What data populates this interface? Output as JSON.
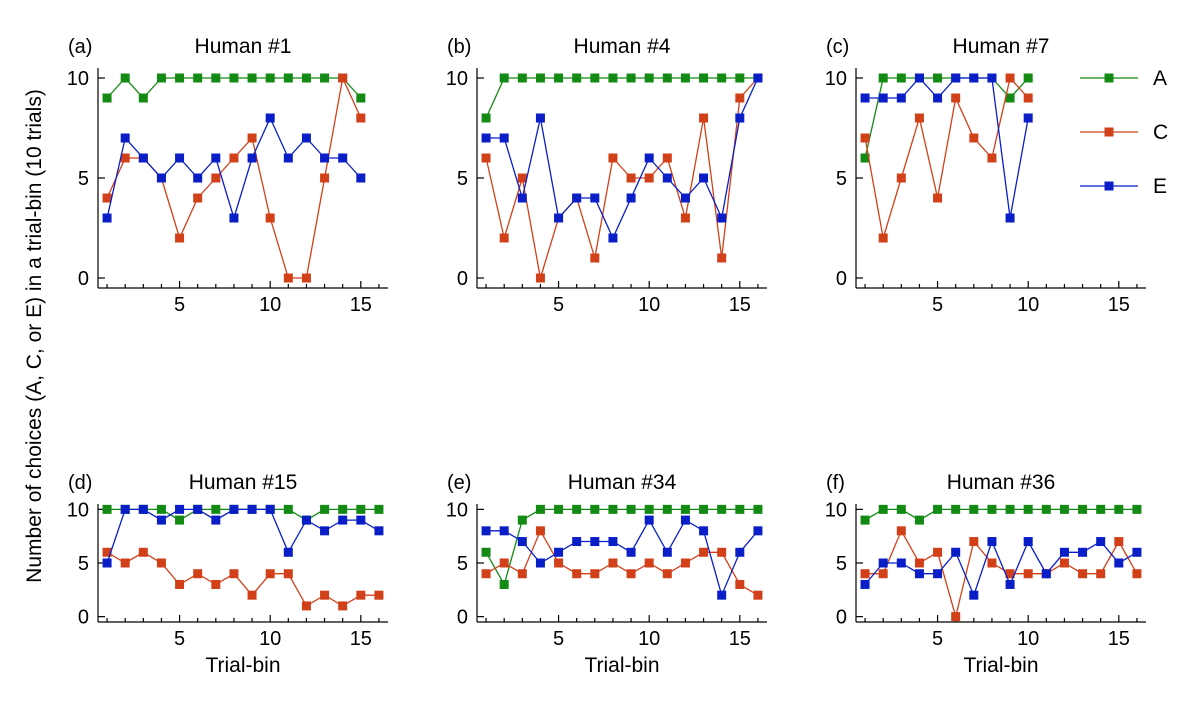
{
  "figure": {
    "ylabel": "Number of choices (A, C, or E) in a trial-bin (10 trials)",
    "xlabel": "Trial-bin"
  },
  "legend": [
    {
      "name": "A",
      "color": "#138a13"
    },
    {
      "name": "C",
      "color": "#d2401a"
    },
    {
      "name": "E",
      "color": "#0a1ec8"
    }
  ],
  "chart_data": [
    {
      "type": "line",
      "letter": "(a)",
      "title": "Human #1",
      "xlim": [
        0.5,
        16.5
      ],
      "ylim": [
        -0.5,
        10.5
      ],
      "xticks": [
        5,
        10,
        15
      ],
      "yticks": [
        0,
        5,
        10
      ],
      "series": [
        {
          "name": "A",
          "color": "#138a13",
          "x": [
            1,
            2,
            3,
            4,
            5,
            6,
            7,
            8,
            9,
            10,
            11,
            12,
            13,
            14,
            15
          ],
          "values": [
            9,
            10,
            9,
            10,
            10,
            10,
            10,
            10,
            10,
            10,
            10,
            10,
            10,
            10,
            9
          ]
        },
        {
          "name": "C",
          "color": "#d2401a",
          "x": [
            1,
            2,
            3,
            4,
            5,
            6,
            7,
            8,
            9,
            10,
            11,
            12,
            13,
            14,
            15
          ],
          "values": [
            4,
            6,
            6,
            5,
            2,
            4,
            5,
            6,
            7,
            3,
            0,
            0,
            5,
            10,
            8
          ]
        },
        {
          "name": "E",
          "color": "#0a1ec8",
          "x": [
            1,
            2,
            3,
            4,
            5,
            6,
            7,
            8,
            9,
            10,
            11,
            12,
            13,
            14,
            15
          ],
          "values": [
            3,
            7,
            6,
            5,
            6,
            5,
            6,
            3,
            6,
            8,
            6,
            7,
            6,
            6,
            5
          ]
        }
      ]
    },
    {
      "type": "line",
      "letter": "(b)",
      "title": "Human #4",
      "xlim": [
        0.5,
        16.5
      ],
      "ylim": [
        -0.5,
        10.5
      ],
      "xticks": [
        5,
        10,
        15
      ],
      "yticks": [
        0,
        5,
        10
      ],
      "series": [
        {
          "name": "A",
          "color": "#138a13",
          "x": [
            1,
            2,
            3,
            4,
            5,
            6,
            7,
            8,
            9,
            10,
            11,
            12,
            13,
            14,
            15,
            16
          ],
          "values": [
            8,
            10,
            10,
            10,
            10,
            10,
            10,
            10,
            10,
            10,
            10,
            10,
            10,
            10,
            10,
            10
          ]
        },
        {
          "name": "C",
          "color": "#d2401a",
          "x": [
            1,
            2,
            3,
            4,
            5,
            6,
            7,
            8,
            9,
            10,
            11,
            12,
            13,
            14,
            15,
            16
          ],
          "values": [
            6,
            2,
            5,
            0,
            3,
            4,
            1,
            6,
            5,
            5,
            6,
            3,
            8,
            1,
            9,
            10
          ]
        },
        {
          "name": "E",
          "color": "#0a1ec8",
          "x": [
            1,
            2,
            3,
            4,
            5,
            6,
            7,
            8,
            9,
            10,
            11,
            12,
            13,
            14,
            15,
            16
          ],
          "values": [
            7,
            7,
            4,
            8,
            3,
            4,
            4,
            2,
            4,
            6,
            5,
            4,
            5,
            3,
            8,
            10
          ]
        }
      ]
    },
    {
      "type": "line",
      "letter": "(c)",
      "title": "Human #7",
      "xlim": [
        0.5,
        16.5
      ],
      "ylim": [
        -0.5,
        10.5
      ],
      "xticks": [
        5,
        10,
        15
      ],
      "yticks": [
        0,
        5,
        10
      ],
      "series": [
        {
          "name": "A",
          "color": "#138a13",
          "x": [
            1,
            2,
            3,
            4,
            5,
            6,
            7,
            8,
            9,
            10
          ],
          "values": [
            6,
            10,
            10,
            10,
            10,
            10,
            10,
            10,
            9,
            10
          ]
        },
        {
          "name": "C",
          "color": "#d2401a",
          "x": [
            1,
            2,
            3,
            4,
            5,
            6,
            7,
            8,
            9,
            10
          ],
          "values": [
            7,
            2,
            5,
            8,
            4,
            9,
            7,
            6,
            10,
            9
          ]
        },
        {
          "name": "E",
          "color": "#0a1ec8",
          "x": [
            1,
            2,
            3,
            4,
            5,
            6,
            7,
            8,
            9,
            10
          ],
          "values": [
            9,
            9,
            9,
            10,
            9,
            10,
            10,
            10,
            3,
            8
          ]
        }
      ]
    },
    {
      "type": "line",
      "letter": "(d)",
      "title": "Human #15",
      "xlim": [
        0.5,
        16.5
      ],
      "ylim": [
        -0.5,
        10.5
      ],
      "xticks": [
        5,
        10,
        15
      ],
      "yticks": [
        0,
        5,
        10
      ],
      "series": [
        {
          "name": "A",
          "color": "#138a13",
          "x": [
            1,
            2,
            3,
            4,
            5,
            6,
            7,
            8,
            9,
            10,
            11,
            12,
            13,
            14,
            15,
            16
          ],
          "values": [
            10,
            10,
            10,
            10,
            9,
            10,
            10,
            10,
            10,
            10,
            10,
            9,
            10,
            10,
            10,
            10
          ]
        },
        {
          "name": "C",
          "color": "#d2401a",
          "x": [
            1,
            2,
            3,
            4,
            5,
            6,
            7,
            8,
            9,
            10,
            11,
            12,
            13,
            14,
            15,
            16
          ],
          "values": [
            6,
            5,
            6,
            5,
            3,
            4,
            3,
            4,
            2,
            4,
            4,
            1,
            2,
            1,
            2,
            2
          ]
        },
        {
          "name": "E",
          "color": "#0a1ec8",
          "x": [
            1,
            2,
            3,
            4,
            5,
            6,
            7,
            8,
            9,
            10,
            11,
            12,
            13,
            14,
            15,
            16
          ],
          "values": [
            5,
            10,
            10,
            9,
            10,
            10,
            9,
            10,
            10,
            10,
            6,
            9,
            8,
            9,
            9,
            8
          ]
        }
      ]
    },
    {
      "type": "line",
      "letter": "(e)",
      "title": "Human #34",
      "xlim": [
        0.5,
        16.5
      ],
      "ylim": [
        -0.5,
        10.5
      ],
      "xticks": [
        5,
        10,
        15
      ],
      "yticks": [
        0,
        5,
        10
      ],
      "series": [
        {
          "name": "A",
          "color": "#138a13",
          "x": [
            1,
            2,
            3,
            4,
            5,
            6,
            7,
            8,
            9,
            10,
            11,
            12,
            13,
            14,
            15,
            16
          ],
          "values": [
            6,
            3,
            9,
            10,
            10,
            10,
            10,
            10,
            10,
            10,
            10,
            10,
            10,
            10,
            10,
            10
          ]
        },
        {
          "name": "C",
          "color": "#d2401a",
          "x": [
            1,
            2,
            3,
            4,
            5,
            6,
            7,
            8,
            9,
            10,
            11,
            12,
            13,
            14,
            15,
            16
          ],
          "values": [
            4,
            5,
            4,
            8,
            5,
            4,
            4,
            5,
            4,
            5,
            4,
            5,
            6,
            6,
            3,
            2
          ]
        },
        {
          "name": "E",
          "color": "#0a1ec8",
          "x": [
            1,
            2,
            3,
            4,
            5,
            6,
            7,
            8,
            9,
            10,
            11,
            12,
            13,
            14,
            15,
            16
          ],
          "values": [
            8,
            8,
            7,
            5,
            6,
            7,
            7,
            7,
            6,
            9,
            6,
            9,
            8,
            2,
            6,
            8
          ]
        }
      ]
    },
    {
      "type": "line",
      "letter": "(f)",
      "title": "Human #36",
      "xlim": [
        0.5,
        16.5
      ],
      "ylim": [
        -0.5,
        10.5
      ],
      "xticks": [
        5,
        10,
        15
      ],
      "yticks": [
        0,
        5,
        10
      ],
      "series": [
        {
          "name": "A",
          "color": "#138a13",
          "x": [
            1,
            2,
            3,
            4,
            5,
            6,
            7,
            8,
            9,
            10,
            11,
            12,
            13,
            14,
            15,
            16
          ],
          "values": [
            9,
            10,
            10,
            9,
            10,
            10,
            10,
            10,
            10,
            10,
            10,
            10,
            10,
            10,
            10,
            10
          ]
        },
        {
          "name": "C",
          "color": "#d2401a",
          "x": [
            1,
            2,
            3,
            4,
            5,
            6,
            7,
            8,
            9,
            10,
            11,
            12,
            13,
            14,
            15,
            16
          ],
          "values": [
            4,
            4,
            8,
            5,
            6,
            0,
            7,
            5,
            4,
            4,
            4,
            5,
            4,
            4,
            7,
            4
          ]
        },
        {
          "name": "E",
          "color": "#0a1ec8",
          "x": [
            1,
            2,
            3,
            4,
            5,
            6,
            7,
            8,
            9,
            10,
            11,
            12,
            13,
            14,
            15,
            16
          ],
          "values": [
            3,
            5,
            5,
            4,
            4,
            6,
            2,
            7,
            3,
            7,
            4,
            6,
            6,
            7,
            5,
            6
          ]
        }
      ]
    }
  ]
}
